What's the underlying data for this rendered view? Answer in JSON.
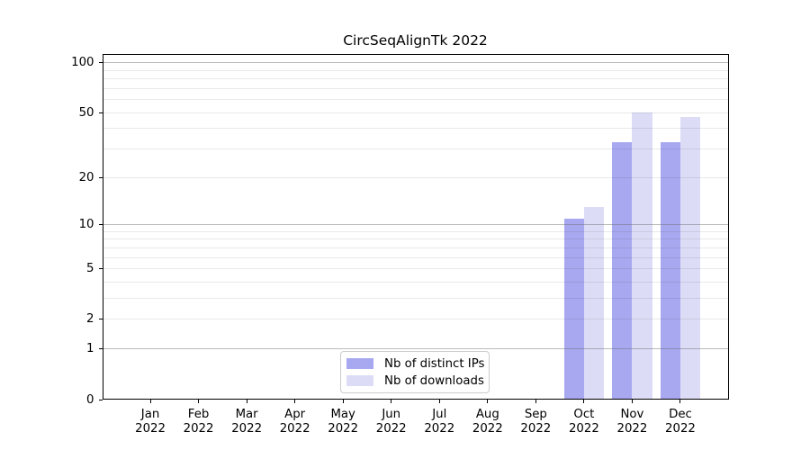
{
  "chart_data": {
    "type": "bar",
    "title": "CircSeqAlignTk 2022",
    "categories": [
      {
        "month": "Jan",
        "year": "2022"
      },
      {
        "month": "Feb",
        "year": "2022"
      },
      {
        "month": "Mar",
        "year": "2022"
      },
      {
        "month": "Apr",
        "year": "2022"
      },
      {
        "month": "May",
        "year": "2022"
      },
      {
        "month": "Jun",
        "year": "2022"
      },
      {
        "month": "Jul",
        "year": "2022"
      },
      {
        "month": "Aug",
        "year": "2022"
      },
      {
        "month": "Sep",
        "year": "2022"
      },
      {
        "month": "Oct",
        "year": "2022"
      },
      {
        "month": "Nov",
        "year": "2022"
      },
      {
        "month": "Dec",
        "year": "2022"
      }
    ],
    "series": [
      {
        "name": "Nb of distinct IPs",
        "slug": "distinct-ips",
        "color": "#a8a8f0",
        "values": [
          0,
          0,
          0,
          0,
          0,
          0,
          0,
          0,
          0,
          11,
          33,
          33
        ]
      },
      {
        "name": "Nb of downloads",
        "slug": "downloads",
        "color": "#dcdcf7",
        "values": [
          0,
          0,
          0,
          0,
          0,
          0,
          0,
          0,
          0,
          13,
          50,
          47
        ]
      }
    ],
    "xlabel": "",
    "ylabel": "",
    "yscale": "symlog-ln(1+v)",
    "ylim": [
      0,
      113
    ],
    "yticks": [
      {
        "value": 0,
        "label": "0"
      },
      {
        "value": 1,
        "label": "1"
      },
      {
        "value": 2,
        "label": "2"
      },
      {
        "value": 5,
        "label": "5"
      },
      {
        "value": 10,
        "label": "10"
      },
      {
        "value": 20,
        "label": "20"
      },
      {
        "value": 50,
        "label": "50"
      },
      {
        "value": 100,
        "label": "100"
      }
    ],
    "major_gridlines": [
      1,
      10,
      100
    ],
    "minor_gridlines": [
      2,
      3,
      4,
      5,
      6,
      7,
      8,
      9,
      20,
      30,
      40,
      50,
      60,
      70,
      80,
      90
    ],
    "grid": "on",
    "legend": {
      "position": "lower center",
      "border_color": "#cccccc"
    },
    "colors": {
      "background": "#ffffff",
      "spine": "#000000",
      "text": "#000000"
    }
  }
}
